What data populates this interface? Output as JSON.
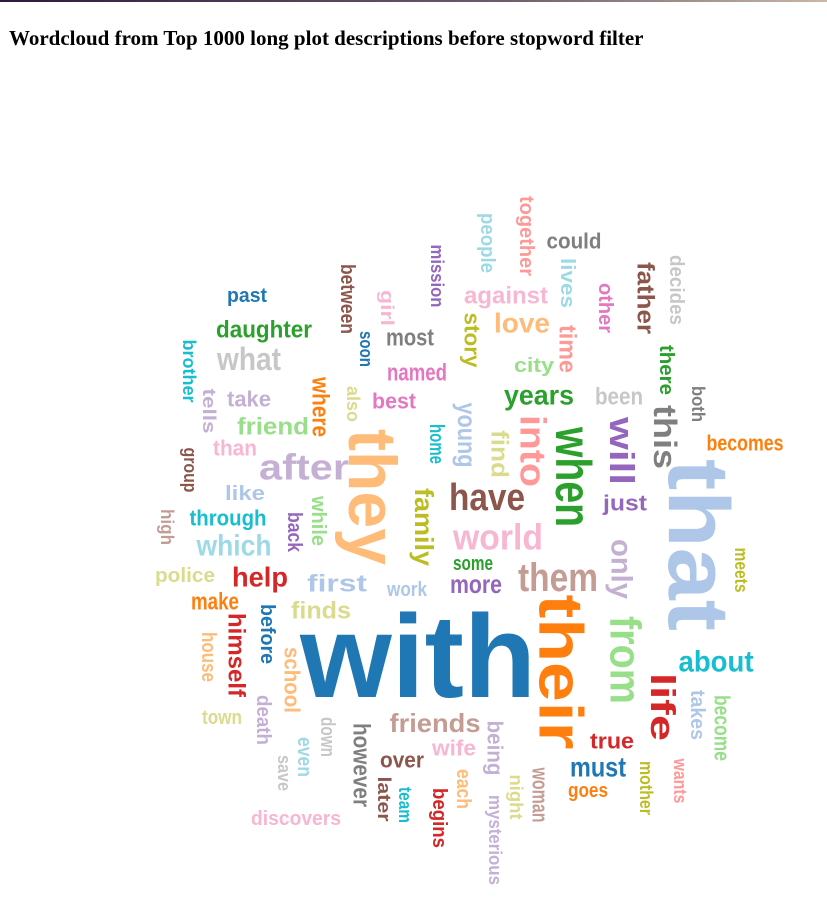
{
  "title": "Wordcloud from Top 1000 long plot descriptions before stopword filter",
  "words": [
    {
      "text": "with",
      "color": "#1f77b4"
    },
    {
      "text": "that",
      "color": "#aec7e8"
    },
    {
      "text": "they",
      "color": "#ffbb78"
    },
    {
      "text": "their",
      "color": "#ff7f0e"
    },
    {
      "text": "when",
      "color": "#2ca02c"
    },
    {
      "text": "from",
      "color": "#98df8a"
    },
    {
      "text": "them",
      "color": "#c49c94"
    },
    {
      "text": "have",
      "color": "#8c564b"
    },
    {
      "text": "world",
      "color": "#f7b6d2"
    },
    {
      "text": "after",
      "color": "#c5b0d5"
    },
    {
      "text": "into",
      "color": "#ff9896"
    },
    {
      "text": "will",
      "color": "#9467bd"
    },
    {
      "text": "this",
      "color": "#7f7f7f"
    },
    {
      "text": "only",
      "color": "#c5b0d5"
    },
    {
      "text": "about",
      "color": "#17becf"
    },
    {
      "text": "life",
      "color": "#d62728"
    },
    {
      "text": "family",
      "color": "#bcbd22"
    },
    {
      "text": "which",
      "color": "#9edae5"
    },
    {
      "text": "friends",
      "color": "#c49c94"
    },
    {
      "text": "must",
      "color": "#1f77b4"
    },
    {
      "text": "years",
      "color": "#2ca02c"
    },
    {
      "text": "help",
      "color": "#d62728"
    },
    {
      "text": "more",
      "color": "#9467bd"
    },
    {
      "text": "what",
      "color": "#c7c7c7"
    },
    {
      "text": "love",
      "color": "#ffbb78"
    },
    {
      "text": "against",
      "color": "#f7b6d2"
    },
    {
      "text": "young",
      "color": "#aec7e8"
    },
    {
      "text": "where",
      "color": "#ff7f0e"
    },
    {
      "text": "himself",
      "color": "#d62728"
    },
    {
      "text": "however",
      "color": "#7f7f7f"
    },
    {
      "text": "school",
      "color": "#ffbb78"
    },
    {
      "text": "over",
      "color": "#8c564b"
    },
    {
      "text": "woman",
      "color": "#c49c94"
    },
    {
      "text": "father",
      "color": "#8c564b"
    },
    {
      "text": "time",
      "color": "#ff9896"
    },
    {
      "text": "daughter",
      "color": "#2ca02c"
    },
    {
      "text": "most",
      "color": "#7f7f7f"
    },
    {
      "text": "first",
      "color": "#aec7e8"
    },
    {
      "text": "make",
      "color": "#ff7f0e"
    },
    {
      "text": "finds",
      "color": "#dbdb8d"
    },
    {
      "text": "find",
      "color": "#dbdb8d"
    },
    {
      "text": "friend",
      "color": "#98df8a"
    },
    {
      "text": "through",
      "color": "#17becf"
    },
    {
      "text": "named",
      "color": "#e377c2"
    },
    {
      "text": "becomes",
      "color": "#ff7f0e"
    },
    {
      "text": "become",
      "color": "#98df8a"
    },
    {
      "text": "story",
      "color": "#bcbd22"
    },
    {
      "text": "been",
      "color": "#c7c7c7"
    },
    {
      "text": "true",
      "color": "#d62728"
    },
    {
      "text": "wife",
      "color": "#f7b6d2"
    },
    {
      "text": "being",
      "color": "#c5b0d5"
    },
    {
      "text": "mysterious",
      "color": "#c5b0d5"
    },
    {
      "text": "discovers",
      "color": "#f7b6d2"
    },
    {
      "text": "take",
      "color": "#c5b0d5"
    },
    {
      "text": "past",
      "color": "#1f77b4"
    },
    {
      "text": "could",
      "color": "#7f7f7f"
    },
    {
      "text": "other",
      "color": "#e377c2"
    },
    {
      "text": "lives",
      "color": "#9edae5"
    },
    {
      "text": "together",
      "color": "#ff9896"
    },
    {
      "text": "people",
      "color": "#9edae5"
    },
    {
      "text": "mission",
      "color": "#9467bd"
    },
    {
      "text": "between",
      "color": "#8c564b"
    },
    {
      "text": "girl",
      "color": "#f7b6d2"
    },
    {
      "text": "soon",
      "color": "#1f77b4"
    },
    {
      "text": "city",
      "color": "#98df8a"
    },
    {
      "text": "home",
      "color": "#17becf"
    },
    {
      "text": "also",
      "color": "#dbdb8d"
    },
    {
      "text": "best",
      "color": "#e377c2"
    },
    {
      "text": "there",
      "color": "#2ca02c"
    },
    {
      "text": "decides",
      "color": "#c7c7c7"
    },
    {
      "text": "both",
      "color": "#7f7f7f"
    },
    {
      "text": "just",
      "color": "#9467bd"
    },
    {
      "text": "meets",
      "color": "#bcbd22"
    },
    {
      "text": "takes",
      "color": "#aec7e8"
    },
    {
      "text": "wants",
      "color": "#ff9896"
    },
    {
      "text": "mother",
      "color": "#bcbd22"
    },
    {
      "text": "goes",
      "color": "#ff7f0e"
    },
    {
      "text": "night",
      "color": "#dbdb8d"
    },
    {
      "text": "each",
      "color": "#ffbb78"
    },
    {
      "text": "begins",
      "color": "#d62728"
    },
    {
      "text": "team",
      "color": "#17becf"
    },
    {
      "text": "later",
      "color": "#8c564b"
    },
    {
      "text": "down",
      "color": "#c7c7c7"
    },
    {
      "text": "even",
      "color": "#9edae5"
    },
    {
      "text": "save",
      "color": "#c7c7c7"
    },
    {
      "text": "death",
      "color": "#c5b0d5"
    },
    {
      "text": "town",
      "color": "#dbdb8d"
    },
    {
      "text": "house",
      "color": "#ffbb78"
    },
    {
      "text": "before",
      "color": "#1f77b4"
    },
    {
      "text": "police",
      "color": "#dbdb8d"
    },
    {
      "text": "high",
      "color": "#c49c94"
    },
    {
      "text": "group",
      "color": "#8c564b"
    },
    {
      "text": "like",
      "color": "#aec7e8"
    },
    {
      "text": "than",
      "color": "#f7b6d2"
    },
    {
      "text": "tells",
      "color": "#c5b0d5"
    },
    {
      "text": "brother",
      "color": "#17becf"
    },
    {
      "text": "while",
      "color": "#98df8a"
    },
    {
      "text": "back",
      "color": "#9467bd"
    },
    {
      "text": "work",
      "color": "#aec7e8"
    },
    {
      "text": "some",
      "color": "#2ca02c"
    }
  ]
}
